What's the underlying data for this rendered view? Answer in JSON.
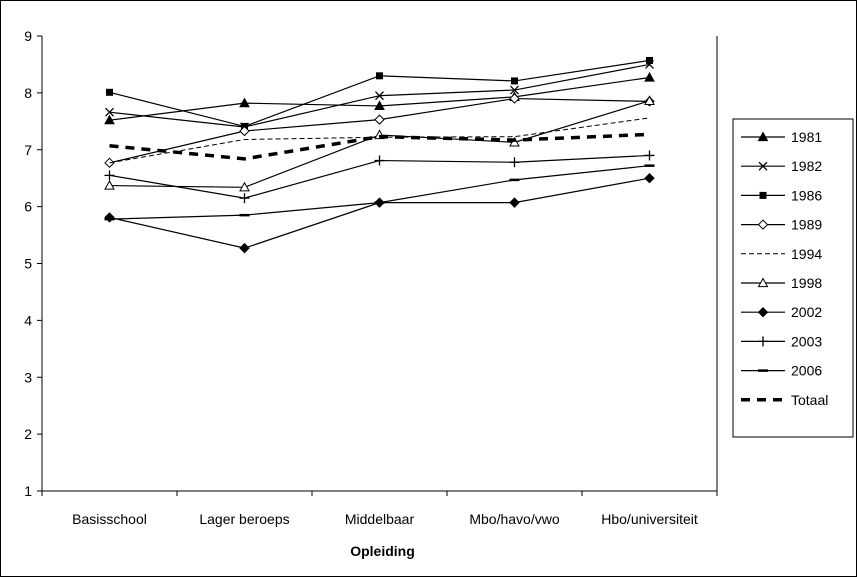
{
  "chart_data": {
    "type": "line",
    "title": "",
    "xlabel": "Opleiding",
    "ylabel": "",
    "categories": [
      "Basisschool",
      "Lager beroeps",
      "Middelbaar",
      "Mbo/havo/vwo",
      "Hbo/universiteit"
    ],
    "ylim": [
      1,
      9
    ],
    "yticks": [
      "1",
      "2",
      "3",
      "4",
      "5",
      "6",
      "7",
      "8",
      "9"
    ],
    "grid": false,
    "legend_position": "right",
    "series": [
      {
        "name": "1981",
        "values": [
          7.52,
          7.82,
          7.77,
          7.93,
          8.27
        ],
        "marker": "triangle-filled",
        "dash": "solid",
        "color": "#000000"
      },
      {
        "name": "1982",
        "values": [
          7.66,
          7.4,
          7.95,
          8.05,
          8.5
        ],
        "marker": "x",
        "dash": "solid",
        "color": "#000000"
      },
      {
        "name": "1986",
        "values": [
          8.01,
          7.41,
          8.3,
          8.21,
          8.57
        ],
        "marker": "square-filled",
        "dash": "solid",
        "color": "#000000"
      },
      {
        "name": "1989",
        "values": [
          6.77,
          7.33,
          7.53,
          7.9,
          7.85
        ],
        "marker": "diamond-open",
        "dash": "solid",
        "color": "#000000"
      },
      {
        "name": "1994",
        "values": [
          6.77,
          7.18,
          7.22,
          7.23,
          7.56
        ],
        "marker": "none",
        "dash": "dashed-thin",
        "color": "#000000"
      },
      {
        "name": "1998",
        "values": [
          6.37,
          6.34,
          7.26,
          7.13,
          7.86
        ],
        "marker": "triangle-open",
        "dash": "solid",
        "color": "#000000"
      },
      {
        "name": "2002",
        "values": [
          5.81,
          5.27,
          6.07,
          6.07,
          6.5
        ],
        "marker": "diamond-filled",
        "dash": "solid",
        "color": "#000000"
      },
      {
        "name": "2003",
        "values": [
          6.55,
          6.15,
          6.81,
          6.78,
          6.9
        ],
        "marker": "plus",
        "dash": "solid",
        "color": "#000000"
      },
      {
        "name": "2006",
        "values": [
          5.78,
          5.85,
          6.07,
          6.47,
          6.72
        ],
        "marker": "dash",
        "dash": "solid",
        "color": "#000000"
      },
      {
        "name": "Totaal",
        "values": [
          7.07,
          6.84,
          7.23,
          7.17,
          7.27
        ],
        "marker": "none",
        "dash": "dashed-thick",
        "color": "#000000"
      }
    ]
  }
}
